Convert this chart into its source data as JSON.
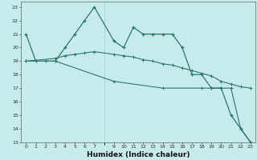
{
  "xlabel": "Humidex (Indice chaleur)",
  "bg_color": "#c8eaea",
  "grid_color": "#a8cccc",
  "line_color": "#2a7a6a",
  "xlim": [
    -0.5,
    23.5
  ],
  "ylim": [
    13,
    23.4
  ],
  "xticks": [
    0,
    1,
    2,
    3,
    4,
    5,
    6,
    7,
    9,
    10,
    11,
    12,
    13,
    14,
    15,
    16,
    17,
    18,
    19,
    20,
    21,
    22,
    23
  ],
  "yticks": [
    13,
    14,
    15,
    16,
    17,
    18,
    19,
    20,
    21,
    22,
    23
  ],
  "line1_x": [
    0,
    1,
    2,
    3,
    4,
    5,
    6,
    7,
    9,
    10,
    11,
    12,
    13,
    14,
    15,
    16,
    17,
    18,
    19,
    20,
    21,
    22,
    23
  ],
  "line1_y": [
    21,
    19,
    19,
    19,
    20,
    21,
    22,
    23,
    20.5,
    20,
    21.5,
    21,
    21,
    21,
    21,
    20,
    18,
    18,
    17,
    17,
    15,
    14,
    13
  ],
  "line2_x": [
    0,
    3,
    4,
    5,
    6,
    7,
    9,
    10,
    11,
    12,
    13,
    14,
    15,
    16,
    17,
    18,
    19,
    20,
    21,
    22,
    23
  ],
  "line2_y": [
    19,
    19.2,
    19.4,
    19.5,
    19.6,
    19.7,
    19.5,
    19.4,
    19.3,
    19.1,
    19.0,
    18.8,
    18.7,
    18.5,
    18.3,
    18.1,
    17.9,
    17.5,
    17.3,
    17.1,
    17.0
  ],
  "line3_x": [
    0,
    3,
    9,
    14,
    18,
    19,
    20,
    21,
    22,
    23
  ],
  "line3_y": [
    19,
    19,
    17.5,
    17.0,
    17.0,
    17.0,
    17.0,
    17.0,
    14.0,
    13.0
  ]
}
